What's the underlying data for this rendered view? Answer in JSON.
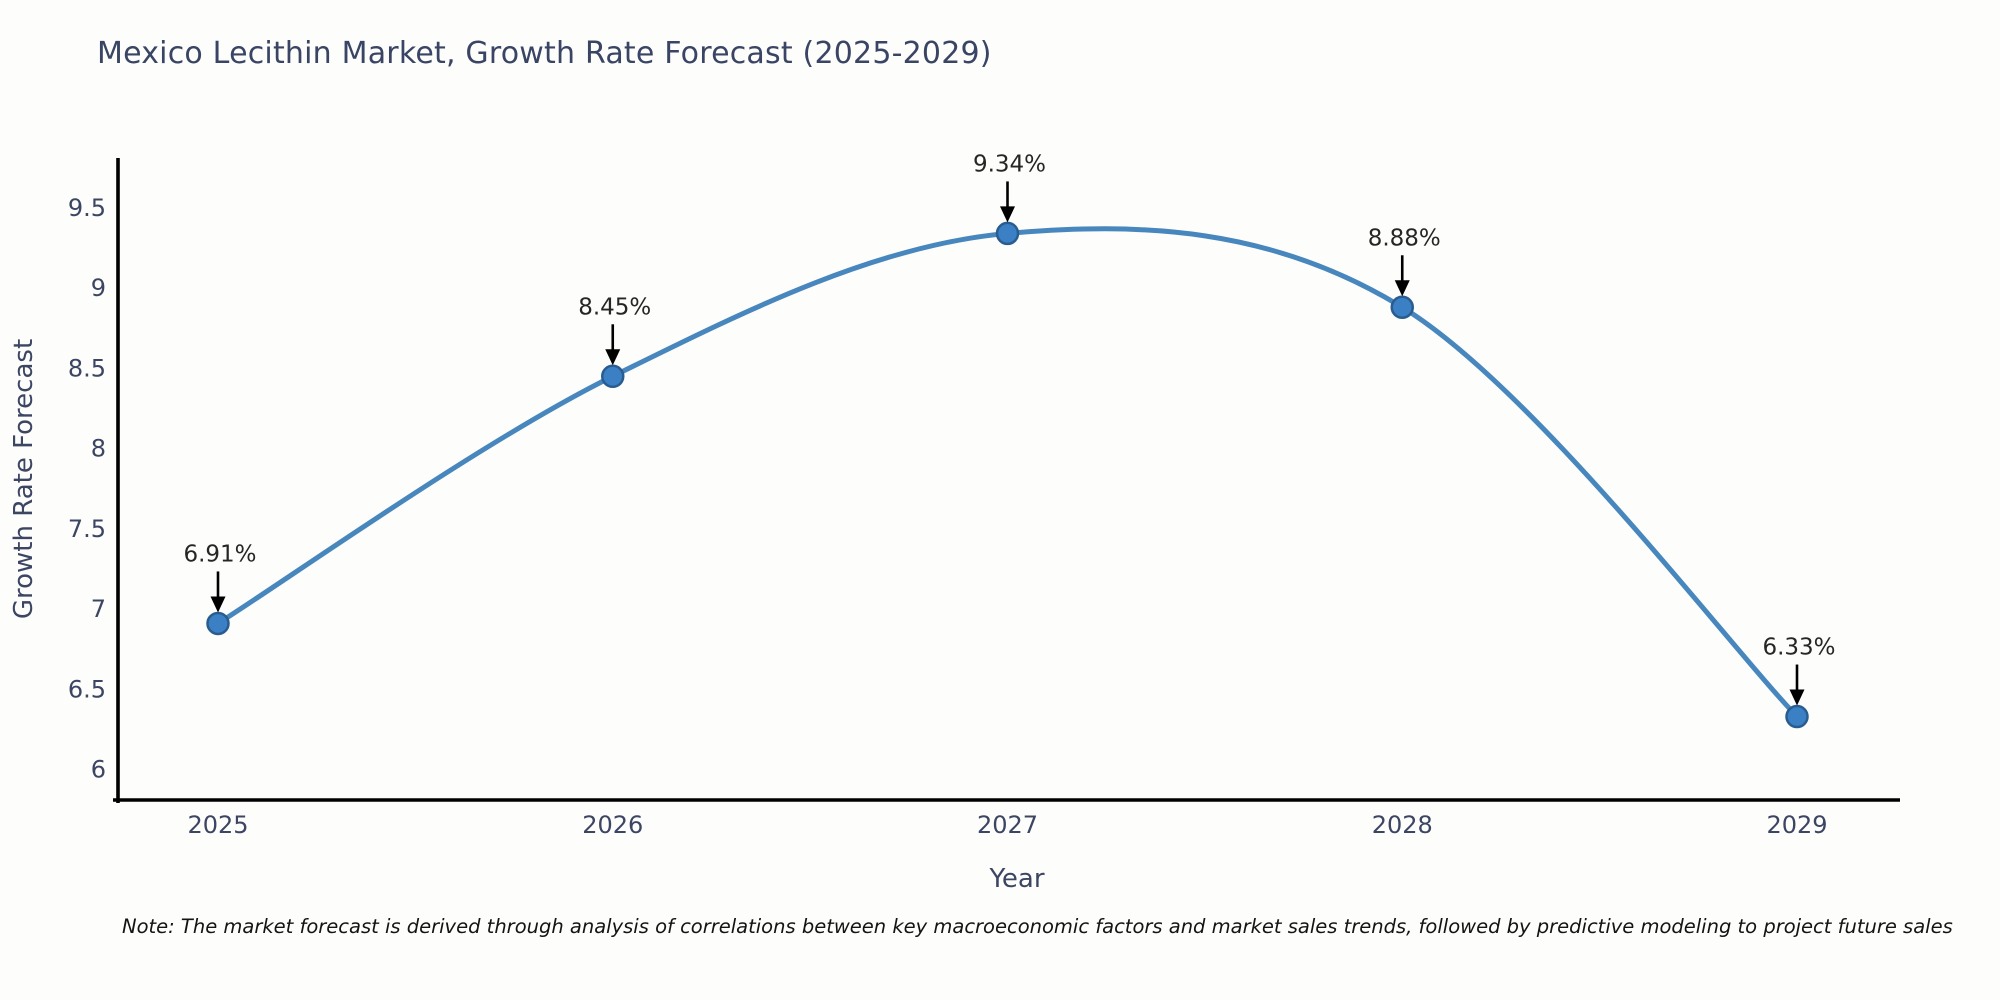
{
  "title": "Mexico Lecithin Market, Growth Rate Forecast (2025-2029)",
  "note": "Note: The market forecast is derived through analysis of correlations between key macroeconomic factors and market sales trends, followed by predictive modeling to project future sales",
  "chart_data": {
    "type": "line",
    "title": "Mexico Lecithin Market, Growth Rate Forecast (2025-2029)",
    "xlabel": "Year",
    "ylabel": "Growth Rate Forecast",
    "x": [
      2025,
      2026,
      2027,
      2028,
      2029
    ],
    "values": [
      6.91,
      8.45,
      9.34,
      8.88,
      6.33
    ],
    "point_labels": [
      "6.91%",
      "8.45%",
      "9.34%",
      "8.88%",
      "6.33%"
    ],
    "xtick_labels": [
      "2025",
      "2026",
      "2027",
      "2028",
      "2029"
    ],
    "yticks": [
      6,
      6.5,
      7,
      7.5,
      8,
      8.5,
      9,
      9.5
    ],
    "ytick_labels": [
      "6",
      "6.5",
      "7",
      "7.5",
      "8",
      "8.5",
      "9",
      "9.5"
    ],
    "ylim": [
      5.81,
      9.81
    ],
    "grid": false,
    "legend": "none",
    "smooth": true,
    "colors": {
      "line": "#4787bd",
      "marker_fill": "#3b7fc4",
      "marker_edge": "#2a5d8f",
      "axis": "#000000",
      "tick_text": "#3c4663",
      "title_text": "#3a4565",
      "annotation_text": "#262626",
      "annotation_arrow": "#000000",
      "background": "#fdfdfb"
    }
  }
}
